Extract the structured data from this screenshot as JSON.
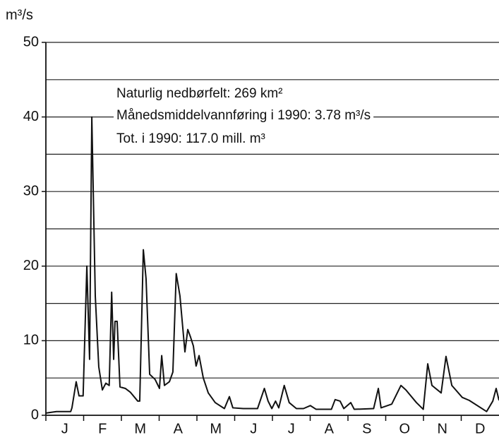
{
  "chart_data": {
    "type": "line",
    "y_label": "m³/s",
    "annotations": [
      "Naturlig nedbørfelt: 269 km²",
      "Månedsmiddelvannføring i 1990: 3.78 m³/s",
      "Tot. i 1990: 117.0 mill. m³"
    ],
    "categories": [
      "J",
      "F",
      "M",
      "A",
      "M",
      "J",
      "J",
      "A",
      "S",
      "O",
      "N",
      "D"
    ],
    "xlim": [
      0,
      365
    ],
    "ylim": [
      0,
      50
    ],
    "yticks": [
      0,
      10,
      20,
      30,
      40,
      50
    ],
    "minor_yticks": [
      5,
      15,
      25,
      35,
      45
    ],
    "grid": true,
    "series": [
      {
        "color": "#111111",
        "x": [
          0,
          8.5,
          20,
          21,
          24.4,
          26.7,
          30,
          33,
          35.2,
          37,
          39.8,
          42.6,
          45.5,
          48.3,
          51,
          53,
          54.6,
          55.7,
          57.4,
          59.7,
          64,
          68,
          74,
          75.6,
          78.5,
          80.7,
          83.6,
          88,
          91.5,
          93.3,
          95.5,
          99.5,
          102.3,
          105,
          108,
          112,
          114.3,
          116.5,
          118.8,
          121,
          123.4,
          126.8,
          130.8,
          136.4,
          143.8,
          147.8,
          150.6,
          159,
          170.5,
          176,
          179,
          182,
          185,
          187.6,
          192,
          196,
          201.8,
          207.5,
          213,
          217.7,
          230,
          233,
          237,
          240,
          245.6,
          248.4,
          264,
          267.8,
          270,
          278.6,
          286,
          290,
          298.5,
          304,
          307.6,
          311,
          318.4,
          322.3,
          327,
          335.4,
          341,
          355,
          360,
          362.7,
          365
        ],
        "values": [
          0.3,
          0.5,
          0.5,
          1,
          4.5,
          2.6,
          2.6,
          20,
          7.5,
          40,
          16,
          6.5,
          3.4,
          4.3,
          4,
          16.5,
          7.5,
          12.6,
          12.6,
          3.8,
          3.6,
          3.1,
          1.9,
          1.9,
          22.2,
          18.3,
          5.5,
          4.8,
          3.6,
          8,
          4,
          4.5,
          5.8,
          19,
          16,
          8.5,
          11.5,
          10.5,
          9.3,
          6.6,
          8,
          5,
          3,
          1.7,
          0.9,
          2.5,
          1,
          0.9,
          0.9,
          3.6,
          1.9,
          0.9,
          1.9,
          1,
          4,
          1.7,
          0.9,
          0.9,
          1.3,
          0.8,
          0.8,
          2.1,
          1.9,
          0.9,
          1.7,
          0.8,
          0.9,
          3.6,
          1,
          1.5,
          4,
          3.4,
          1.7,
          0.8,
          6.9,
          4,
          3,
          7.9,
          4,
          2.4,
          2,
          0.5,
          1.9,
          3.6,
          2
        ]
      }
    ]
  }
}
